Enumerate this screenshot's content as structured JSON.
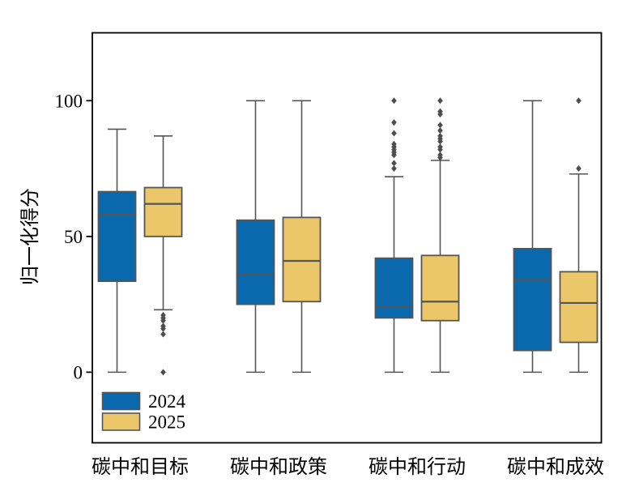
{
  "chart_data": {
    "type": "boxplot",
    "title": "",
    "ylabel": "归一化得分",
    "xlabel": "",
    "yticks": [
      0,
      50,
      100
    ],
    "ylim": [
      -26,
      125
    ],
    "grid": false,
    "categories": [
      "碳中和目标",
      "碳中和政策",
      "碳中和行动",
      "碳中和成效"
    ],
    "legend": {
      "position": "lower left",
      "entries": [
        {
          "label": "2024",
          "color": "#0a68ac"
        },
        {
          "label": "2025",
          "color": "#ecc76a"
        }
      ]
    },
    "series": [
      {
        "name": "2024",
        "color": "#0a68ac",
        "boxes": [
          {
            "category": "碳中和目标",
            "whislo": 0,
            "q1": 33.5,
            "median": 58,
            "q3": 66.5,
            "whishi": 89.5,
            "outliers": []
          },
          {
            "category": "碳中和政策",
            "whislo": 0,
            "q1": 25,
            "median": 36,
            "q3": 56,
            "whishi": 100,
            "outliers": []
          },
          {
            "category": "碳中和行动",
            "whislo": 0,
            "q1": 20,
            "median": 24,
            "q3": 42,
            "whishi": 72,
            "outliers": [
              75,
              77,
              80,
              81,
              82,
              83,
              84,
              88,
              92,
              100
            ]
          },
          {
            "category": "碳中和成效",
            "whislo": 0,
            "q1": 8,
            "median": 34,
            "q3": 45.5,
            "whishi": 100,
            "outliers": []
          }
        ]
      },
      {
        "name": "2025",
        "color": "#ecc76a",
        "boxes": [
          {
            "category": "碳中和目标",
            "whislo": 23,
            "q1": 50,
            "median": 62,
            "q3": 68,
            "whishi": 87,
            "outliers": [
              21,
              20,
              19,
              17,
              16,
              14,
              0
            ]
          },
          {
            "category": "碳中和政策",
            "whislo": 0,
            "q1": 26,
            "median": 41,
            "q3": 57,
            "whishi": 100,
            "outliers": []
          },
          {
            "category": "碳中和行动",
            "whislo": 0,
            "q1": 19,
            "median": 26,
            "q3": 43,
            "whishi": 78,
            "outliers": [
              79,
              80,
              82,
              83,
              85,
              86,
              87,
              89,
              91,
              95,
              96,
              100
            ]
          },
          {
            "category": "碳中和成效",
            "whislo": 0,
            "q1": 11,
            "median": 25.5,
            "q3": 37,
            "whishi": 73,
            "outliers": [
              75,
              100
            ]
          }
        ]
      }
    ],
    "styles": {
      "box_edge": "#555555",
      "whisker": "#555555",
      "median": "#555555",
      "outlier": "#4d4d4d",
      "frame": "#000000",
      "background": "#ffffff"
    }
  }
}
